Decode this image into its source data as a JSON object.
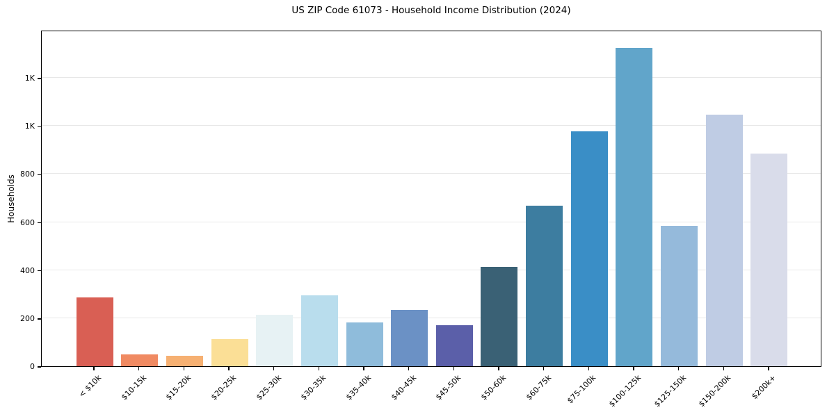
{
  "chart_data": {
    "type": "bar",
    "title": "US ZIP Code 61073 - Household Income Distribution (2024)",
    "xlabel": "",
    "ylabel": "Households",
    "categories": [
      "< $10k",
      "$10-15k",
      "$15-20k",
      "$20-25k",
      "$25-30k",
      "$30-35k",
      "$35-40k",
      "$40-45k",
      "$45-50k",
      "$50-60k",
      "$60-75k",
      "$75-100k",
      "$100-125k",
      "$125-150k",
      "$150-200k",
      "$200k+"
    ],
    "values": [
      285,
      50,
      42,
      113,
      214,
      294,
      182,
      234,
      170,
      415,
      667,
      978,
      1326,
      583,
      1048,
      884
    ],
    "bar_colors": [
      "#d95f54",
      "#f08a62",
      "#f6b072",
      "#fbdf96",
      "#e7f2f4",
      "#b9dded",
      "#8fbcdb",
      "#6b91c5",
      "#5b5fa9",
      "#3a6175",
      "#3d7da0",
      "#3a8ec6",
      "#61a5ca",
      "#95badb",
      "#bfcce4",
      "#d9dcea"
    ],
    "yticks": {
      "values": [
        0,
        200,
        400,
        600,
        800,
        1000,
        1200
      ],
      "labels": [
        "0",
        "200",
        "400",
        "600",
        "800",
        "1K",
        "1K"
      ]
    },
    "ylim": [
      0,
      1400
    ],
    "grid": "horizontal",
    "legend": "none"
  }
}
